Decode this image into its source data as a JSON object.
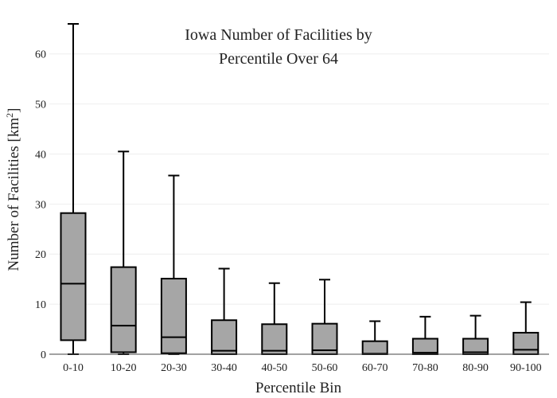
{
  "chart_data": {
    "type": "box",
    "title_lines": [
      "Iowa Number of Facilities by",
      "Percentile Over 64"
    ],
    "xlabel": "Percentile Bin",
    "ylabel_main": "Number of Facilities  [km",
    "ylabel_sup": "2",
    "ylabel_end": "]",
    "ylim": [
      0,
      66
    ],
    "yticks": [
      0,
      10,
      20,
      30,
      40,
      50,
      60
    ],
    "grid": true,
    "legend": "none",
    "colors": {
      "box_fill": "#a6a6a6",
      "stroke": "#000000",
      "grid": "#eeeeee",
      "axis": "#444444"
    },
    "categories": [
      "0-10",
      "10-20",
      "20-30",
      "30-40",
      "40-50",
      "50-60",
      "60-70",
      "70-80",
      "80-90",
      "90-100"
    ],
    "boxes": [
      {
        "min": 0,
        "q1": 2.8,
        "median": 14.1,
        "q3": 28.2,
        "max": 66.0
      },
      {
        "min": 0,
        "q1": 0.4,
        "median": 5.7,
        "q3": 17.4,
        "max": 40.5
      },
      {
        "min": 0,
        "q1": 0.2,
        "median": 3.4,
        "q3": 15.1,
        "max": 35.7
      },
      {
        "min": 0,
        "q1": 0.0,
        "median": 0.7,
        "q3": 6.8,
        "max": 17.1
      },
      {
        "min": 0,
        "q1": 0.0,
        "median": 0.7,
        "q3": 6.0,
        "max": 14.2
      },
      {
        "min": 0,
        "q1": 0.0,
        "median": 0.8,
        "q3": 6.1,
        "max": 14.9
      },
      {
        "min": 0,
        "q1": 0.0,
        "median": 0.1,
        "q3": 2.6,
        "max": 6.6
      },
      {
        "min": 0,
        "q1": 0.0,
        "median": 0.3,
        "q3": 3.1,
        "max": 7.5
      },
      {
        "min": 0,
        "q1": 0.0,
        "median": 0.4,
        "q3": 3.1,
        "max": 7.7
      },
      {
        "min": 0,
        "q1": 0.0,
        "median": 0.9,
        "q3": 4.3,
        "max": 10.4
      }
    ]
  }
}
